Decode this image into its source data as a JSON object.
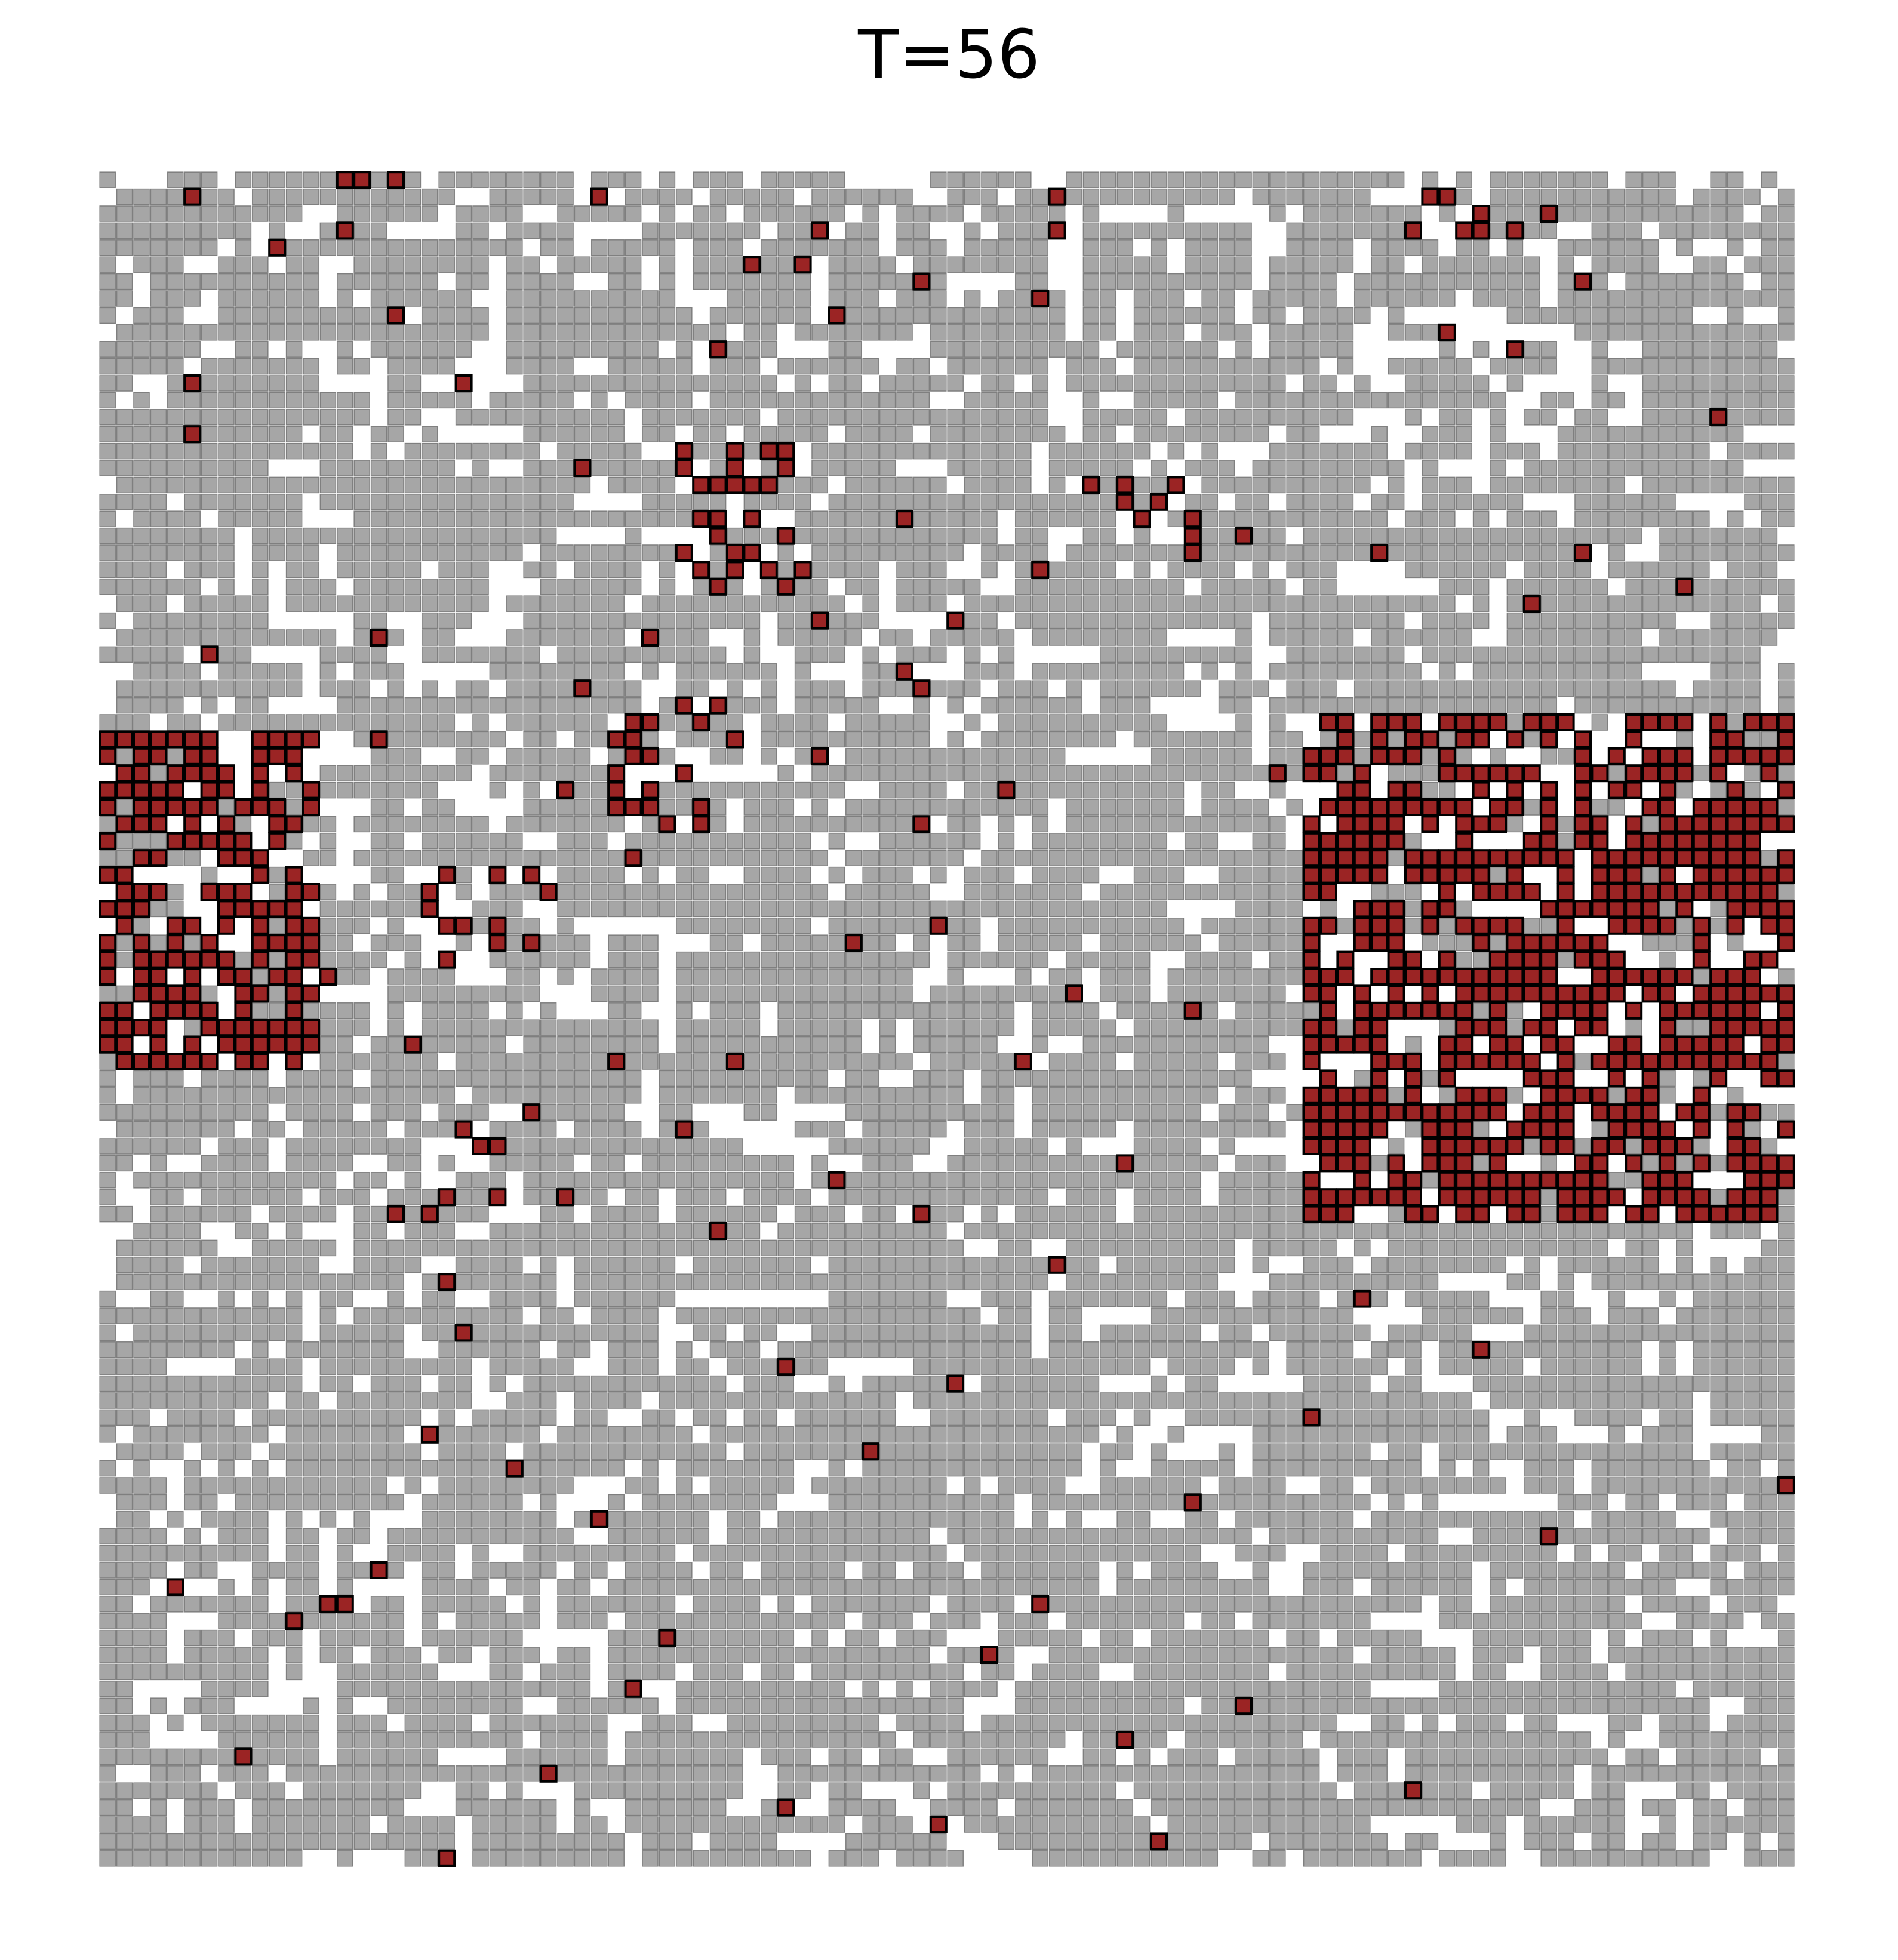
{
  "title": "T=56",
  "grid": {
    "rows": 100,
    "cols": 100,
    "colors": {
      "occupied": "#a6a6a6",
      "occupied_stroke": "#7f7f7f",
      "empty": "#ffffff",
      "burning": "#9b2424",
      "burning_stroke": "#000000"
    },
    "empty_fraction": 0.13,
    "burning_cells": [
      [
        0,
        14
      ],
      [
        0,
        15
      ],
      [
        0,
        17
      ],
      [
        1,
        29
      ],
      [
        1,
        56
      ],
      [
        1,
        78
      ],
      [
        2,
        85
      ],
      [
        3,
        14
      ],
      [
        3,
        42
      ],
      [
        3,
        56
      ],
      [
        3,
        83
      ],
      [
        5,
        38
      ],
      [
        5,
        41
      ],
      [
        6,
        48
      ],
      [
        6,
        87
      ],
      [
        8,
        17
      ],
      [
        8,
        43
      ],
      [
        9,
        79
      ],
      [
        10,
        83
      ],
      [
        12,
        5
      ],
      [
        12,
        21
      ],
      [
        15,
        5
      ],
      [
        16,
        34
      ],
      [
        17,
        28
      ],
      [
        18,
        58
      ],
      [
        19,
        62
      ],
      [
        20,
        47
      ],
      [
        21,
        67
      ],
      [
        22,
        75
      ],
      [
        22,
        87
      ],
      [
        23,
        55
      ],
      [
        25,
        84
      ],
      [
        26,
        42
      ],
      [
        27,
        16
      ],
      [
        27,
        32
      ],
      [
        29,
        47
      ],
      [
        30,
        28
      ],
      [
        31,
        36
      ],
      [
        33,
        1
      ],
      [
        33,
        16
      ],
      [
        33,
        37
      ],
      [
        34,
        42
      ],
      [
        35,
        69
      ],
      [
        35,
        80
      ],
      [
        36,
        27
      ],
      [
        36,
        53
      ],
      [
        38,
        48
      ],
      [
        38,
        71
      ],
      [
        40,
        31
      ],
      [
        41,
        23
      ],
      [
        44,
        23
      ],
      [
        45,
        44
      ],
      [
        47,
        13
      ],
      [
        49,
        64
      ],
      [
        51,
        18
      ],
      [
        52,
        54
      ],
      [
        52,
        37
      ],
      [
        55,
        25
      ],
      [
        56,
        34
      ],
      [
        59,
        43
      ],
      [
        61,
        48
      ],
      [
        64,
        56
      ],
      [
        66,
        74
      ],
      [
        68,
        21
      ],
      [
        71,
        50
      ],
      [
        74,
        19
      ],
      [
        76,
        24
      ],
      [
        78,
        64
      ],
      [
        82,
        16
      ],
      [
        84,
        55
      ],
      [
        86,
        33
      ],
      [
        89,
        31
      ],
      [
        92,
        60
      ],
      [
        95,
        77
      ],
      [
        99,
        20
      ],
      [
        1,
        5
      ],
      [
        4,
        10
      ],
      [
        7,
        55
      ],
      [
        10,
        36
      ],
      [
        14,
        95
      ],
      [
        24,
        93
      ],
      [
        28,
        6
      ],
      [
        37,
        6
      ],
      [
        50,
        10
      ],
      [
        57,
        88
      ],
      [
        62,
        36
      ],
      [
        65,
        20
      ],
      [
        69,
        81
      ],
      [
        73,
        71
      ],
      [
        77,
        99
      ],
      [
        80,
        85
      ],
      [
        83,
        4
      ],
      [
        87,
        52
      ],
      [
        90,
        67
      ],
      [
        93,
        8
      ],
      [
        96,
        40
      ],
      [
        98,
        62
      ],
      [
        30,
        48
      ],
      [
        26,
        50
      ],
      [
        44,
        49
      ],
      [
        48,
        57
      ],
      [
        52,
        30
      ],
      [
        58,
        60
      ],
      [
        60,
        27
      ],
      [
        70,
        40
      ],
      [
        75,
        45
      ],
      [
        79,
        29
      ],
      [
        85,
        11
      ],
      [
        94,
        26
      ],
      [
        97,
        49
      ]
    ],
    "burning_clusters": [
      {
        "row0": 33,
        "col0": 0,
        "rows": 20,
        "cols": 13,
        "density": 0.62
      },
      {
        "row0": 32,
        "col0": 71,
        "rows": 30,
        "cols": 29,
        "density": 0.62
      },
      {
        "row0": 16,
        "col0": 34,
        "rows": 9,
        "cols": 8,
        "density": 0.35
      },
      {
        "row0": 31,
        "col0": 30,
        "rows": 8,
        "cols": 6,
        "density": 0.4
      },
      {
        "row0": 18,
        "col0": 60,
        "rows": 5,
        "cols": 5,
        "density": 0.35
      },
      {
        "row0": 41,
        "col0": 19,
        "rows": 6,
        "cols": 8,
        "density": 0.28
      },
      {
        "row0": 0,
        "col0": 77,
        "rows": 4,
        "cols": 5,
        "density": 0.4
      },
      {
        "row0": 55,
        "col0": 16,
        "rows": 7,
        "cols": 9,
        "density": 0.22
      },
      {
        "row0": 81,
        "col0": 13,
        "rows": 4,
        "cols": 4,
        "density": 0.35
      }
    ]
  }
}
